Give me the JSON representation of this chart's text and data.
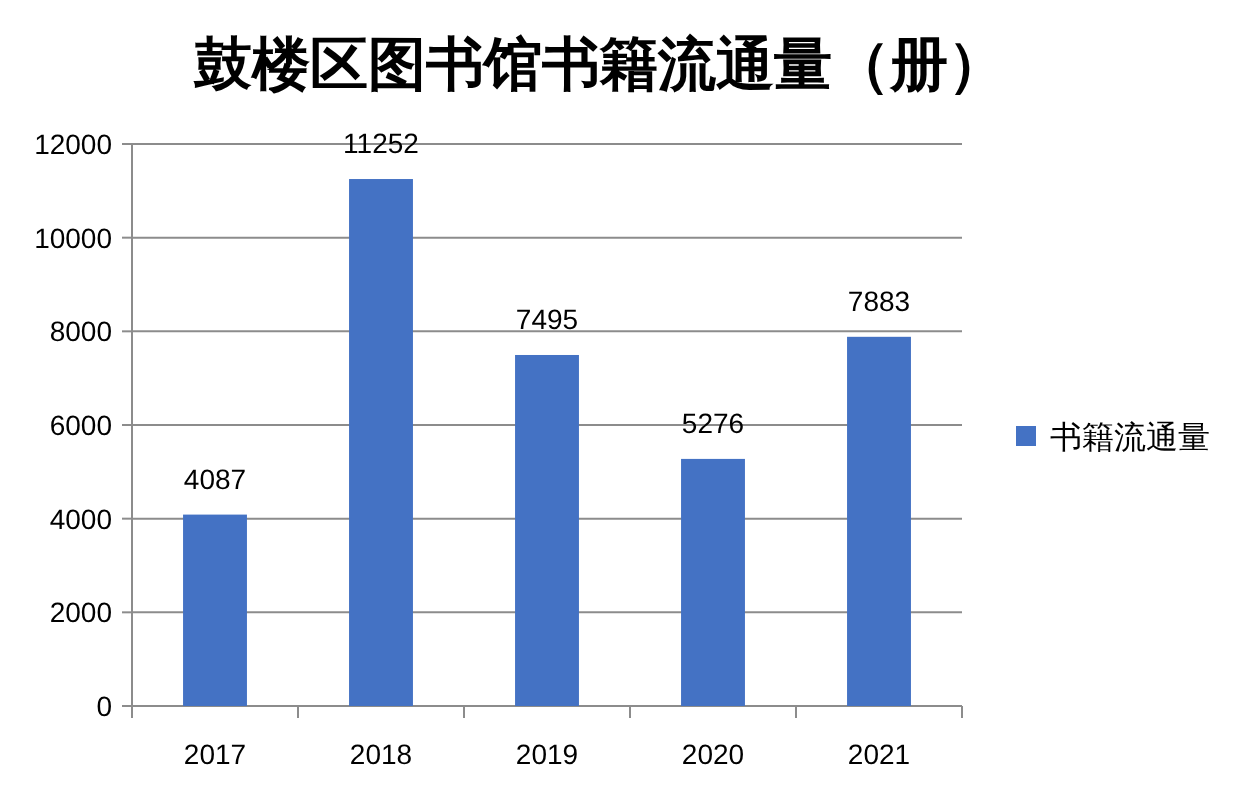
{
  "chart_data": {
    "type": "bar",
    "title": "鼓楼区图书馆书籍流通量（册）",
    "categories": [
      "2017",
      "2018",
      "2019",
      "2020",
      "2021"
    ],
    "series": [
      {
        "name": "书籍流通量",
        "color": "#4472c4",
        "values": [
          4087,
          11252,
          7495,
          5276,
          7883
        ]
      }
    ],
    "ylim": [
      0,
      12000
    ],
    "yticks": [
      0,
      2000,
      4000,
      6000,
      8000,
      10000,
      12000
    ],
    "grid": "y",
    "legend": "right",
    "data_labels": true
  }
}
